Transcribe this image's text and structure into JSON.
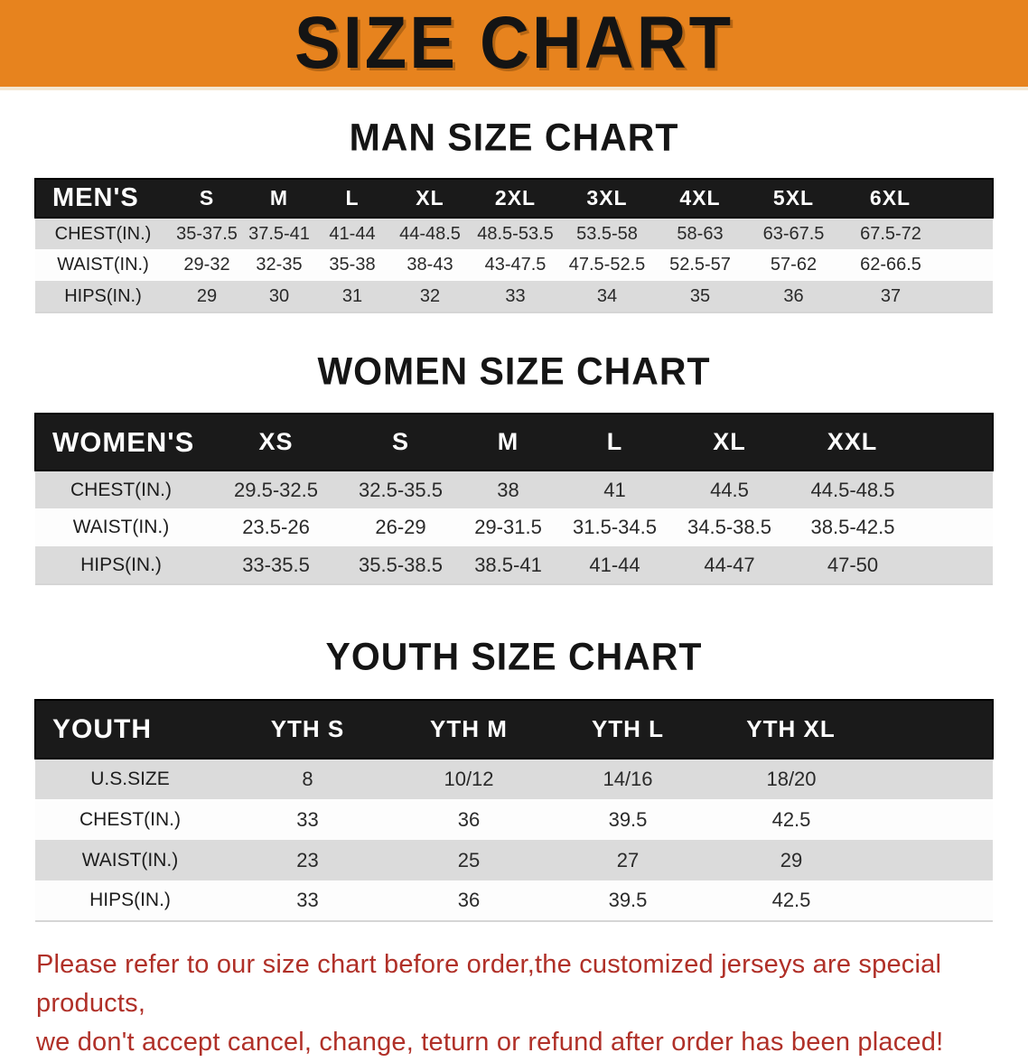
{
  "banner": {
    "title": "SIZE CHART",
    "bg_color": "#E7831E"
  },
  "sections": [
    {
      "heading": "MAN SIZE CHART",
      "table": {
        "columns": [
          "MEN'S",
          "S",
          "M",
          "L",
          "XL",
          "2XL",
          "3XL",
          "4XL",
          "5XL",
          "6XL"
        ],
        "rows": [
          {
            "label": "CHEST(IN.)",
            "values": [
              "35-37.5",
              "37.5-41",
              "41-44",
              "44-48.5",
              "48.5-53.5",
              "53.5-58",
              "58-63",
              "63-67.5",
              "67.5-72"
            ]
          },
          {
            "label": "WAIST(IN.)",
            "values": [
              "29-32",
              "32-35",
              "35-38",
              "38-43",
              "43-47.5",
              "47.5-52.5",
              "52.5-57",
              "57-62",
              "62-66.5"
            ]
          },
          {
            "label": "HIPS(IN.)",
            "values": [
              "29",
              "30",
              "31",
              "32",
              "33",
              "34",
              "35",
              "36",
              "37"
            ]
          }
        ]
      }
    },
    {
      "heading": "WOMEN SIZE CHART",
      "table": {
        "columns": [
          "WOMEN'S",
          "XS",
          "S",
          "M",
          "L",
          "XL",
          "XXL"
        ],
        "rows": [
          {
            "label": "CHEST(IN.)",
            "values": [
              "29.5-32.5",
              "32.5-35.5",
              "38",
              "41",
              "44.5",
              "44.5-48.5"
            ]
          },
          {
            "label": "WAIST(IN.)",
            "values": [
              "23.5-26",
              "26-29",
              "29-31.5",
              "31.5-34.5",
              "34.5-38.5",
              "38.5-42.5"
            ]
          },
          {
            "label": "HIPS(IN.)",
            "values": [
              "33-35.5",
              "35.5-38.5",
              "38.5-41",
              "41-44",
              "44-47",
              "47-50"
            ]
          }
        ]
      }
    },
    {
      "heading": "YOUTH SIZE CHART",
      "table": {
        "columns": [
          "YOUTH",
          "YTH S",
          "YTH M",
          "YTH L",
          "YTH XL"
        ],
        "rows": [
          {
            "label": "U.S.SIZE",
            "values": [
              "8",
              "10/12",
              "14/16",
              "18/20"
            ]
          },
          {
            "label": "CHEST(IN.)",
            "values": [
              "33",
              "36",
              "39.5",
              "42.5"
            ]
          },
          {
            "label": "WAIST(IN.)",
            "values": [
              "23",
              "25",
              "27",
              "29"
            ]
          },
          {
            "label": "HIPS(IN.)",
            "values": [
              "33",
              "36",
              "39.5",
              "42.5"
            ]
          }
        ]
      }
    }
  ],
  "disclaimer": {
    "line1": "Please refer to our size chart before order,the customized jerseys are special products,",
    "line2": "we don't accept cancel, change, teturn or refund after order has been placed!",
    "color": "#B03028"
  }
}
